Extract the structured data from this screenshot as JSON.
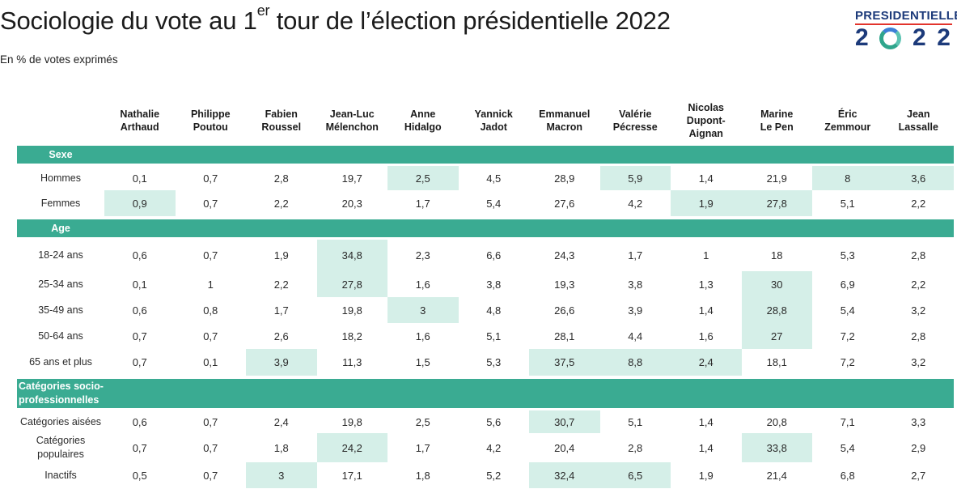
{
  "title_main": "Sociologie du vote au 1",
  "title_sup": "er",
  "title_rest": " tour de l’élection présidentielle 2022",
  "subtitle": "En % de votes exprimés",
  "logo": {
    "top": "PRESIDENTIELLE",
    "digits": [
      "2",
      "2",
      "2"
    ]
  },
  "colors": {
    "section_band": "#3aab92",
    "highlight": "#d5efe8",
    "logo_blue": "#1c3a7a",
    "logo_red": "#e2342c"
  },
  "chart_data": {
    "type": "table",
    "columns": [
      [
        "Nathalie",
        "Arthaud"
      ],
      [
        "Philippe",
        "Poutou"
      ],
      [
        "Fabien",
        "Roussel"
      ],
      [
        "Jean-Luc",
        "Mélenchon"
      ],
      [
        "Anne",
        "Hidalgo"
      ],
      [
        "Yannick",
        "Jadot"
      ],
      [
        "Emmanuel",
        "Macron"
      ],
      [
        "Valérie",
        "Pécresse"
      ],
      [
        "Nicolas",
        "Dupont-",
        "Aignan"
      ],
      [
        "Marine",
        "Le Pen"
      ],
      [
        "Éric",
        "Zemmour"
      ],
      [
        "Jean",
        "Lassalle"
      ]
    ],
    "sections": [
      {
        "label": [
          "Sexe"
        ],
        "rows": [
          {
            "label": [
              "Hommes"
            ],
            "values": [
              "0,1",
              "0,7",
              "2,8",
              "19,7",
              "2,5",
              "4,5",
              "28,9",
              "5,9",
              "1,4",
              "21,9",
              "8",
              "3,6"
            ],
            "highlight": [
              4,
              7,
              10,
              11
            ]
          },
          {
            "label": [
              "Femmes"
            ],
            "values": [
              "0,9",
              "0,7",
              "2,2",
              "20,3",
              "1,7",
              "5,4",
              "27,6",
              "4,2",
              "1,9",
              "27,8",
              "5,1",
              "2,2"
            ],
            "highlight": [
              0,
              8,
              9
            ]
          }
        ]
      },
      {
        "label": [
          "Age"
        ],
        "rows": [
          {
            "label": [
              "18-24 ans"
            ],
            "values": [
              "0,6",
              "0,7",
              "1,9",
              "34,8",
              "2,3",
              "6,6",
              "24,3",
              "1,7",
              "1",
              "18",
              "5,3",
              "2,8"
            ],
            "highlight": [
              3
            ]
          },
          {
            "label": [
              "25-34 ans"
            ],
            "values": [
              "0,1",
              "1",
              "2,2",
              "27,8",
              "1,6",
              "3,8",
              "19,3",
              "3,8",
              "1,3",
              "30",
              "6,9",
              "2,2"
            ],
            "highlight": [
              3,
              9
            ]
          },
          {
            "label": [
              "35-49 ans"
            ],
            "values": [
              "0,6",
              "0,8",
              "1,7",
              "19,8",
              "3",
              "4,8",
              "26,6",
              "3,9",
              "1,4",
              "28,8",
              "5,4",
              "3,2"
            ],
            "highlight": [
              4,
              9
            ]
          },
          {
            "label": [
              "50-64 ans"
            ],
            "values": [
              "0,7",
              "0,7",
              "2,6",
              "18,2",
              "1,6",
              "5,1",
              "28,1",
              "4,4",
              "1,6",
              "27",
              "7,2",
              "2,8"
            ],
            "highlight": [
              9
            ]
          },
          {
            "label": [
              "65 ans et plus"
            ],
            "values": [
              "0,7",
              "0,1",
              "3,9",
              "11,3",
              "1,5",
              "5,3",
              "37,5",
              "8,8",
              "2,4",
              "18,1",
              "7,2",
              "3,2"
            ],
            "highlight": [
              2,
              6,
              7,
              8
            ]
          }
        ]
      },
      {
        "label": [
          "Catégories socio-",
          "professionnelles"
        ],
        "rows": [
          {
            "label": [
              "Catégories aisées"
            ],
            "values": [
              "0,6",
              "0,7",
              "2,4",
              "19,8",
              "2,5",
              "5,6",
              "30,7",
              "5,1",
              "1,4",
              "20,8",
              "7,1",
              "3,3"
            ],
            "highlight": [
              6
            ]
          },
          {
            "label": [
              "Catégories",
              "populaires"
            ],
            "values": [
              "0,7",
              "0,7",
              "1,8",
              "24,2",
              "1,7",
              "4,2",
              "20,4",
              "2,8",
              "1,4",
              "33,8",
              "5,4",
              "2,9"
            ],
            "highlight": [
              3,
              9
            ]
          },
          {
            "label": [
              "Inactifs"
            ],
            "values": [
              "0,5",
              "0,7",
              "3",
              "17,1",
              "1,8",
              "5,2",
              "32,4",
              "6,5",
              "1,9",
              "21,4",
              "6,8",
              "2,7"
            ],
            "highlight": [
              2,
              6,
              7
            ]
          }
        ]
      }
    ]
  }
}
